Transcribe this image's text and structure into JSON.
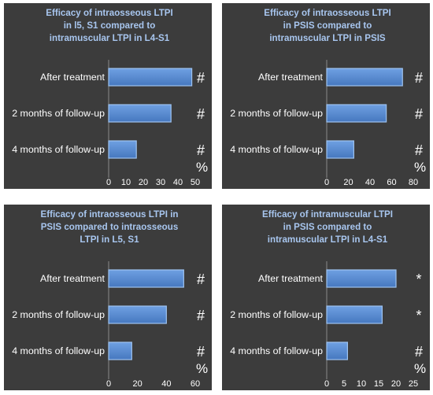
{
  "colors": {
    "panel_bg": "#3c3c3c",
    "bar_fill": "#5b8fd6",
    "bar_edge": "#9ec3f0",
    "title": "#a8c6ef",
    "text": "#ffffff",
    "axis": "#8a8a8a"
  },
  "chart_data": [
    {
      "type": "bar",
      "orientation": "horizontal",
      "title": "Efficacy of intraosseous LTPI in l5, S1 compared to intramuscular LTPI in L4-S1",
      "title_lines": [
        "Efficacy of intraosseous LTPI",
        "in l5, S1 compared to",
        "intramuscular LTPI in L4-S1"
      ],
      "categories": [
        "After treatment",
        "2 months of follow-up",
        "4 months of follow-up"
      ],
      "values": [
        48,
        36,
        16
      ],
      "significance": [
        "#",
        "#",
        "#"
      ],
      "unit": "%",
      "xlim": [
        0,
        50
      ],
      "xticks": [
        0,
        10,
        20,
        30,
        40,
        50
      ],
      "grid": false
    },
    {
      "type": "bar",
      "orientation": "horizontal",
      "title": "Efficacy of intraosseous LTPI in PSIS compared to intramuscular LTPI in PSIS",
      "title_lines": [
        "Efficacy of intraosseous LTPI",
        "in PSIS compared to",
        "intramuscular LTPI in PSIS"
      ],
      "categories": [
        "After treatment",
        "2 months of follow-up",
        "4 months of follow-up"
      ],
      "values": [
        70,
        55,
        25
      ],
      "significance": [
        "#",
        "#",
        "#"
      ],
      "unit": "%",
      "xlim": [
        0,
        80
      ],
      "xticks": [
        0,
        20,
        40,
        60,
        80
      ],
      "grid": false
    },
    {
      "type": "bar",
      "orientation": "horizontal",
      "title": "Efficacy of intraosseous LTPI in PSIS compared to intraosseous LTPI in L5, S1",
      "title_lines": [
        "Efficacy of intraosseous LTPI in",
        "PSIS compared to intraosseous",
        "LTPI  in L5, S1"
      ],
      "categories": [
        "After treatment",
        "2 months of follow-up",
        "4 months of follow-up"
      ],
      "values": [
        52,
        40,
        16
      ],
      "significance": [
        "#",
        "#",
        "#"
      ],
      "unit": "%",
      "xlim": [
        0,
        60
      ],
      "xticks": [
        0,
        20,
        40,
        60
      ],
      "grid": false
    },
    {
      "type": "bar",
      "orientation": "horizontal",
      "title": "Efficacy of intramuscular LTPI in PSIS compared to intramuscular LTPI in L4-S1",
      "title_lines": [
        "Efficacy of intramuscular LTPI",
        "in PSIS compared to",
        "intramuscular LTPI in L4-S1"
      ],
      "categories": [
        "After treatment",
        "2 months of follow-up",
        "4 months of follow-up"
      ],
      "values": [
        20,
        16,
        6
      ],
      "significance": [
        "*",
        "*",
        "#"
      ],
      "unit": "%",
      "xlim": [
        0,
        25
      ],
      "xticks": [
        0,
        5,
        10,
        15,
        20,
        25
      ],
      "grid": false
    }
  ]
}
